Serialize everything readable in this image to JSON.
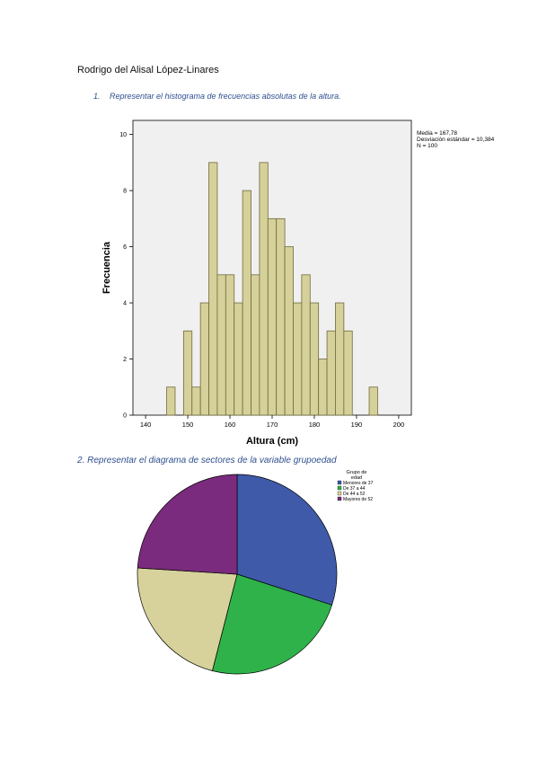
{
  "author": "Rodrigo del Alisal López-Linares",
  "question1": {
    "number": "1.",
    "text": "Representar el histograma de frecuencias absolutas de la altura."
  },
  "question2": {
    "text": "2. Representar el diagrama de sectores de la variable grupoedad"
  },
  "histogram_stats": {
    "mean": "Media = 167,78",
    "std": "Desviación estándar = 10,384",
    "n": "N = 100"
  },
  "chart_data": [
    {
      "type": "bar",
      "xlabel": "Altura (cm)",
      "ylabel": "Frecuencia",
      "xlim": [
        137,
        203
      ],
      "ylim": [
        0,
        10.5
      ],
      "xticks": [
        140,
        150,
        160,
        170,
        180,
        190,
        200
      ],
      "yticks": [
        0,
        2,
        4,
        6,
        8,
        10
      ],
      "bin_width": 2,
      "bins": [
        {
          "start": 145,
          "value": 1
        },
        {
          "start": 149,
          "value": 3
        },
        {
          "start": 151,
          "value": 1
        },
        {
          "start": 153,
          "value": 4
        },
        {
          "start": 155,
          "value": 9
        },
        {
          "start": 157,
          "value": 5
        },
        {
          "start": 159,
          "value": 5
        },
        {
          "start": 161,
          "value": 4
        },
        {
          "start": 163,
          "value": 8
        },
        {
          "start": 165,
          "value": 5
        },
        {
          "start": 167,
          "value": 9
        },
        {
          "start": 169,
          "value": 7
        },
        {
          "start": 171,
          "value": 7
        },
        {
          "start": 173,
          "value": 6
        },
        {
          "start": 175,
          "value": 4
        },
        {
          "start": 177,
          "value": 5
        },
        {
          "start": 179,
          "value": 4
        },
        {
          "start": 181,
          "value": 2
        },
        {
          "start": 183,
          "value": 3
        },
        {
          "start": 185,
          "value": 4
        },
        {
          "start": 187,
          "value": 3
        },
        {
          "start": 193,
          "value": 1
        }
      ],
      "colors": {
        "bar_fill": "#d6d19a",
        "bar_stroke": "#6e6a3c",
        "plot_bg": "#f0f0f0"
      }
    },
    {
      "type": "pie",
      "legend_title": [
        "Grupo de",
        "edad"
      ],
      "legend_position": "top-right",
      "slices": [
        {
          "label": "Menores de 37",
          "value": 30,
          "color": "#3f5aa9"
        },
        {
          "label": "De 37 a 44",
          "value": 24,
          "color": "#2fb24a"
        },
        {
          "label": "De 44 a 52",
          "value": 22,
          "color": "#d7d29b"
        },
        {
          "label": "Mayores de 52",
          "value": 24,
          "color": "#7b2b7e"
        }
      ]
    }
  ]
}
